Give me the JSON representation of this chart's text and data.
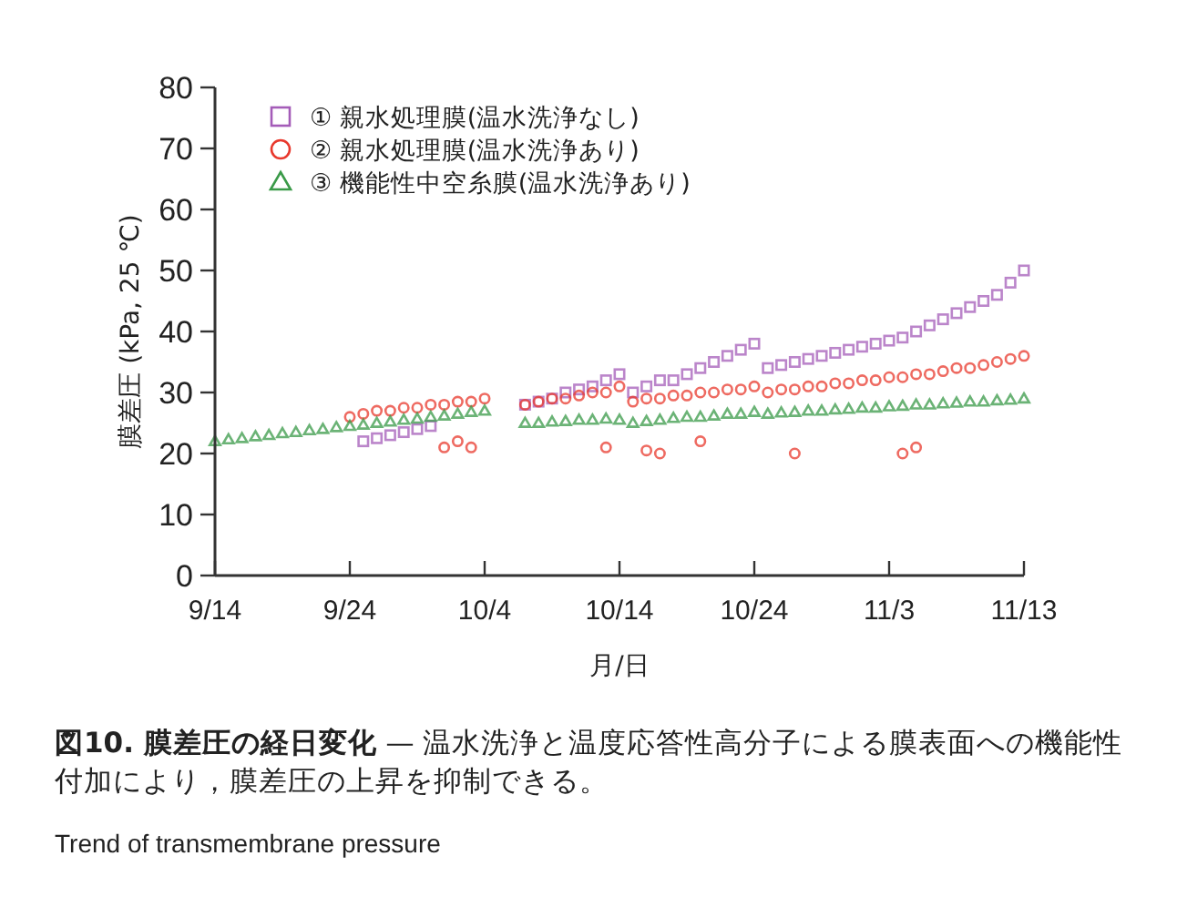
{
  "chart_data": {
    "type": "scatter",
    "title": "図10. 膜差圧の経日変化",
    "subtitle": "— 温水洗浄と温度応答性高分子による膜表面への機能性付加により，膜差圧の上昇を抑制できる。",
    "xlabel": "月/日",
    "ylabel": "膜差圧 (kPa, 25 ℃)",
    "annotations": [
      "Trend of transmembrane pressure"
    ],
    "xlim": [
      "--09-14",
      "--11-13"
    ],
    "ylim": [
      0,
      80
    ],
    "xticks": [
      {
        "value": "--09-14",
        "label": "9/14"
      },
      {
        "value": "--09-24",
        "label": "9/24"
      },
      {
        "value": "--10-04",
        "label": "10/4"
      },
      {
        "value": "--10-14",
        "label": "10/14"
      },
      {
        "value": "--10-24",
        "label": "10/24"
      },
      {
        "value": "--11-03",
        "label": "11/3"
      },
      {
        "value": "--11-13",
        "label": "11/13"
      }
    ],
    "yticks": [
      0,
      10,
      20,
      30,
      40,
      50,
      60,
      70,
      80
    ],
    "grid": false,
    "legend": "top left",
    "series": [
      {
        "name": "① 親水処理膜(温水洗浄なし)",
        "color": "#a45cb8",
        "marker": "square",
        "x": [
          "--09-25",
          "--09-26",
          "--09-27",
          "--09-28",
          "--09-29",
          "--09-30",
          "--10-07",
          "--10-08",
          "--10-09",
          "--10-10",
          "--10-11",
          "--10-12",
          "--10-13",
          "--10-14",
          "--10-15",
          "--10-16",
          "--10-17",
          "--10-18",
          "--10-19",
          "--10-20",
          "--10-21",
          "--10-22",
          "--10-23",
          "--10-24",
          "--10-25",
          "--10-26",
          "--10-27",
          "--10-28",
          "--10-29",
          "--10-30",
          "--10-31",
          "--11-01",
          "--11-02",
          "--11-03",
          "--11-04",
          "--11-05",
          "--11-06",
          "--11-07",
          "--11-08",
          "--11-09",
          "--11-10",
          "--11-11",
          "--11-12",
          "--11-13"
        ],
        "values": [
          22,
          22.5,
          23,
          23.5,
          24,
          24.5,
          28,
          28.5,
          29,
          30,
          30.5,
          31,
          32,
          33,
          30,
          31,
          32,
          32,
          33,
          34,
          35,
          36,
          37,
          38,
          34,
          34.5,
          35,
          35.5,
          36,
          36.5,
          37,
          37.5,
          38,
          38.5,
          39,
          40,
          41,
          42,
          43,
          44,
          45,
          46,
          48,
          50
        ]
      },
      {
        "name": "② 親水処理膜(温水洗浄あり)",
        "color": "#e8382c",
        "marker": "circle",
        "x": [
          "--09-24",
          "--09-25",
          "--09-26",
          "--09-27",
          "--09-28",
          "--09-29",
          "--09-30",
          "--10-01",
          "--10-02",
          "--10-03",
          "--10-04",
          "--10-07",
          "--10-08",
          "--10-09",
          "--10-10",
          "--10-11",
          "--10-12",
          "--10-13",
          "--10-14",
          "--10-15",
          "--10-16",
          "--10-17",
          "--10-18",
          "--10-19",
          "--10-20",
          "--10-21",
          "--10-22",
          "--10-23",
          "--10-24",
          "--10-25",
          "--10-26",
          "--10-27",
          "--10-28",
          "--10-29",
          "--10-30",
          "--10-31",
          "--11-01",
          "--11-02",
          "--11-03",
          "--11-04",
          "--11-05",
          "--11-06",
          "--11-07",
          "--11-08",
          "--11-09",
          "--11-10",
          "--11-11",
          "--11-12",
          "--11-13",
          "--10-01",
          "--10-02",
          "--10-03",
          "--10-13",
          "--10-16",
          "--10-17",
          "--10-20",
          "--10-27",
          "--11-04",
          "--11-05"
        ],
        "values": [
          26,
          26.5,
          27,
          27,
          27.5,
          27.5,
          28,
          28,
          28.5,
          28.5,
          29,
          28,
          28.5,
          29,
          29,
          29.5,
          30,
          30,
          31,
          28.5,
          29,
          29,
          29.5,
          29.5,
          30,
          30,
          30.5,
          30.5,
          31,
          30,
          30.5,
          30.5,
          31,
          31,
          31.5,
          31.5,
          32,
          32,
          32.5,
          32.5,
          33,
          33,
          33.5,
          34,
          34,
          34.5,
          35,
          35.5,
          36,
          21,
          22,
          21,
          21,
          20.5,
          20,
          22,
          20,
          20,
          21
        ]
      },
      {
        "name": "③ 機能性中空糸膜(温水洗浄あり)",
        "color": "#3a9a48",
        "marker": "triangle",
        "x": [
          "--09-14",
          "--09-15",
          "--09-16",
          "--09-17",
          "--09-18",
          "--09-19",
          "--09-20",
          "--09-21",
          "--09-22",
          "--09-23",
          "--09-24",
          "--09-25",
          "--09-26",
          "--09-27",
          "--09-28",
          "--09-29",
          "--09-30",
          "--10-01",
          "--10-02",
          "--10-03",
          "--10-04",
          "--10-07",
          "--10-08",
          "--10-09",
          "--10-10",
          "--10-11",
          "--10-12",
          "--10-13",
          "--10-14",
          "--10-15",
          "--10-16",
          "--10-17",
          "--10-18",
          "--10-19",
          "--10-20",
          "--10-21",
          "--10-22",
          "--10-23",
          "--10-24",
          "--10-25",
          "--10-26",
          "--10-27",
          "--10-28",
          "--10-29",
          "--10-30",
          "--10-31",
          "--11-01",
          "--11-02",
          "--11-03",
          "--11-04",
          "--11-05",
          "--11-06",
          "--11-07",
          "--11-08",
          "--11-09",
          "--11-10",
          "--11-11",
          "--11-12",
          "--11-13"
        ],
        "values": [
          22,
          22.3,
          22.5,
          22.8,
          23,
          23.3,
          23.5,
          23.8,
          24,
          24.3,
          24.5,
          24.7,
          25,
          25.2,
          25.5,
          25.7,
          26,
          26.2,
          26.5,
          26.8,
          27,
          25,
          25,
          25.2,
          25.3,
          25.5,
          25.5,
          25.7,
          25.5,
          25,
          25.3,
          25.5,
          25.8,
          26,
          26,
          26.2,
          26.5,
          26.5,
          26.8,
          26.5,
          26.7,
          26.8,
          27,
          27,
          27.2,
          27.3,
          27.5,
          27.5,
          27.7,
          27.8,
          28,
          28,
          28.2,
          28.3,
          28.5,
          28.5,
          28.7,
          28.8,
          29
        ]
      }
    ]
  }
}
